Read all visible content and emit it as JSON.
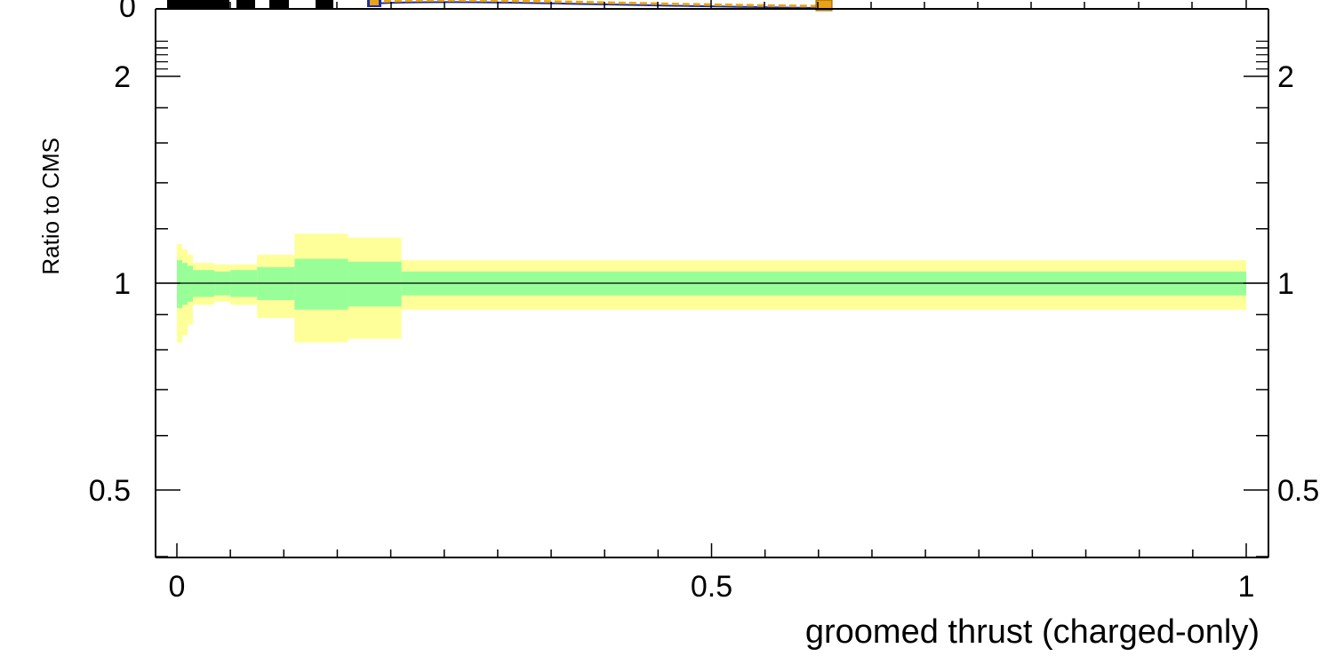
{
  "chart_data": [
    {
      "type": "line",
      "partial": "bottom edge of upper distribution panel (cut off)",
      "yticks_visible": [
        {
          "value": 0,
          "label": "0"
        }
      ],
      "series_colors": {
        "data_points": "#000000",
        "mc_line_orange": "#e8a317",
        "mc_line_blue": "#1f2f9a"
      },
      "data_marker_x": [
        0.0,
        0.02,
        0.03,
        0.06,
        0.09,
        0.13
      ],
      "mc_marker_x": [
        0.185,
        0.605
      ]
    },
    {
      "type": "area",
      "title": "",
      "xlabel": "groomed thrust (charged-only)",
      "ylabel": "Ratio to CMS",
      "xlim": [
        -0.01,
        1.01
      ],
      "ylim": [
        0.35,
        2.3
      ],
      "xticks": [
        {
          "value": 0,
          "label": "0"
        },
        {
          "value": 0.5,
          "label": "0.5"
        },
        {
          "value": 1,
          "label": "1"
        }
      ],
      "yticks": [
        {
          "value": 0.5,
          "label": "0.5"
        },
        {
          "value": 1,
          "label": "1"
        },
        {
          "value": 2,
          "label": "2"
        }
      ],
      "reference_line": 1.0,
      "bins": [
        {
          "x0": 0.0,
          "x1": 0.005,
          "stat_lo": 0.92,
          "stat_hi": 1.08,
          "tot_lo": 0.82,
          "tot_hi": 1.14
        },
        {
          "x0": 0.005,
          "x1": 0.01,
          "stat_lo": 0.93,
          "stat_hi": 1.07,
          "tot_lo": 0.84,
          "tot_hi": 1.12
        },
        {
          "x0": 0.01,
          "x1": 0.015,
          "stat_lo": 0.94,
          "stat_hi": 1.06,
          "tot_lo": 0.87,
          "tot_hi": 1.1
        },
        {
          "x0": 0.015,
          "x1": 0.035,
          "stat_lo": 0.955,
          "stat_hi": 1.045,
          "tot_lo": 0.93,
          "tot_hi": 1.07
        },
        {
          "x0": 0.035,
          "x1": 0.05,
          "stat_lo": 0.96,
          "stat_hi": 1.04,
          "tot_lo": 0.94,
          "tot_hi": 1.065
        },
        {
          "x0": 0.05,
          "x1": 0.075,
          "stat_lo": 0.955,
          "stat_hi": 1.045,
          "tot_lo": 0.93,
          "tot_hi": 1.065
        },
        {
          "x0": 0.075,
          "x1": 0.11,
          "stat_lo": 0.945,
          "stat_hi": 1.055,
          "tot_lo": 0.89,
          "tot_hi": 1.1
        },
        {
          "x0": 0.11,
          "x1": 0.16,
          "stat_lo": 0.915,
          "stat_hi": 1.085,
          "tot_lo": 0.82,
          "tot_hi": 1.18
        },
        {
          "x0": 0.16,
          "x1": 0.21,
          "stat_lo": 0.925,
          "stat_hi": 1.075,
          "tot_lo": 0.83,
          "tot_hi": 1.165
        },
        {
          "x0": 0.21,
          "x1": 1.0,
          "stat_lo": 0.96,
          "stat_hi": 1.04,
          "tot_lo": 0.915,
          "tot_hi": 1.08
        }
      ],
      "colors": {
        "stat_band": "#98ff98",
        "total_band": "#ffff99",
        "reference_line": "#000000",
        "frame": "#000000"
      },
      "grid": false,
      "right_axis_labels": true
    }
  ]
}
